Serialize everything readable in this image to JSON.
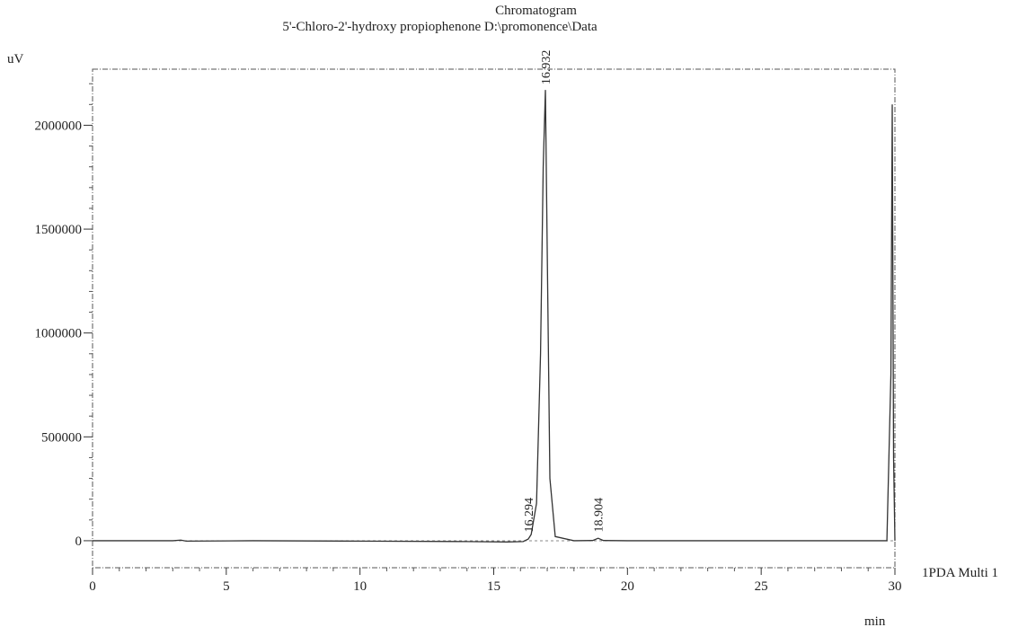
{
  "chart_data": {
    "type": "line",
    "title": "Chromatogram",
    "subtitle": "5'-Chloro-2'-hydroxy propiophenone D:\\promonence\\Data",
    "ylabel": "uV",
    "xlabel": "min",
    "xlim": [
      0,
      30
    ],
    "ylim": [
      -130000,
      2270000
    ],
    "xticks": [
      0,
      5,
      10,
      15,
      20,
      25,
      30
    ],
    "yticks": [
      0,
      500000,
      1000000,
      1500000,
      2000000
    ],
    "grid": false,
    "legend": "right",
    "series": [
      {
        "name": "1PDA Multi 1",
        "x": [
          0,
          3,
          3.3,
          3.5,
          6,
          10,
          14,
          15.5,
          16.1,
          16.29,
          16.4,
          16.6,
          16.75,
          16.85,
          16.932,
          17.0,
          17.1,
          17.3,
          18.0,
          18.7,
          18.904,
          19.1,
          20,
          25,
          29.7,
          29.85,
          29.9,
          29.95,
          30
        ],
        "y": [
          0,
          0,
          3000,
          -2000,
          0,
          -2000,
          -4000,
          -6000,
          -4000,
          8000,
          30000,
          180000,
          900000,
          1800000,
          2170000,
          1400000,
          300000,
          20000,
          0,
          1000,
          12000,
          1000,
          0,
          0,
          0,
          800000,
          2100000,
          400000,
          0
        ]
      }
    ],
    "annotations": [
      {
        "text": "16.932",
        "x": 16.932,
        "y": 2170000
      },
      {
        "text": "16.294",
        "x": 16.294,
        "y": 15000
      },
      {
        "text": "18.904",
        "x": 18.904,
        "y": 15000
      }
    ]
  }
}
